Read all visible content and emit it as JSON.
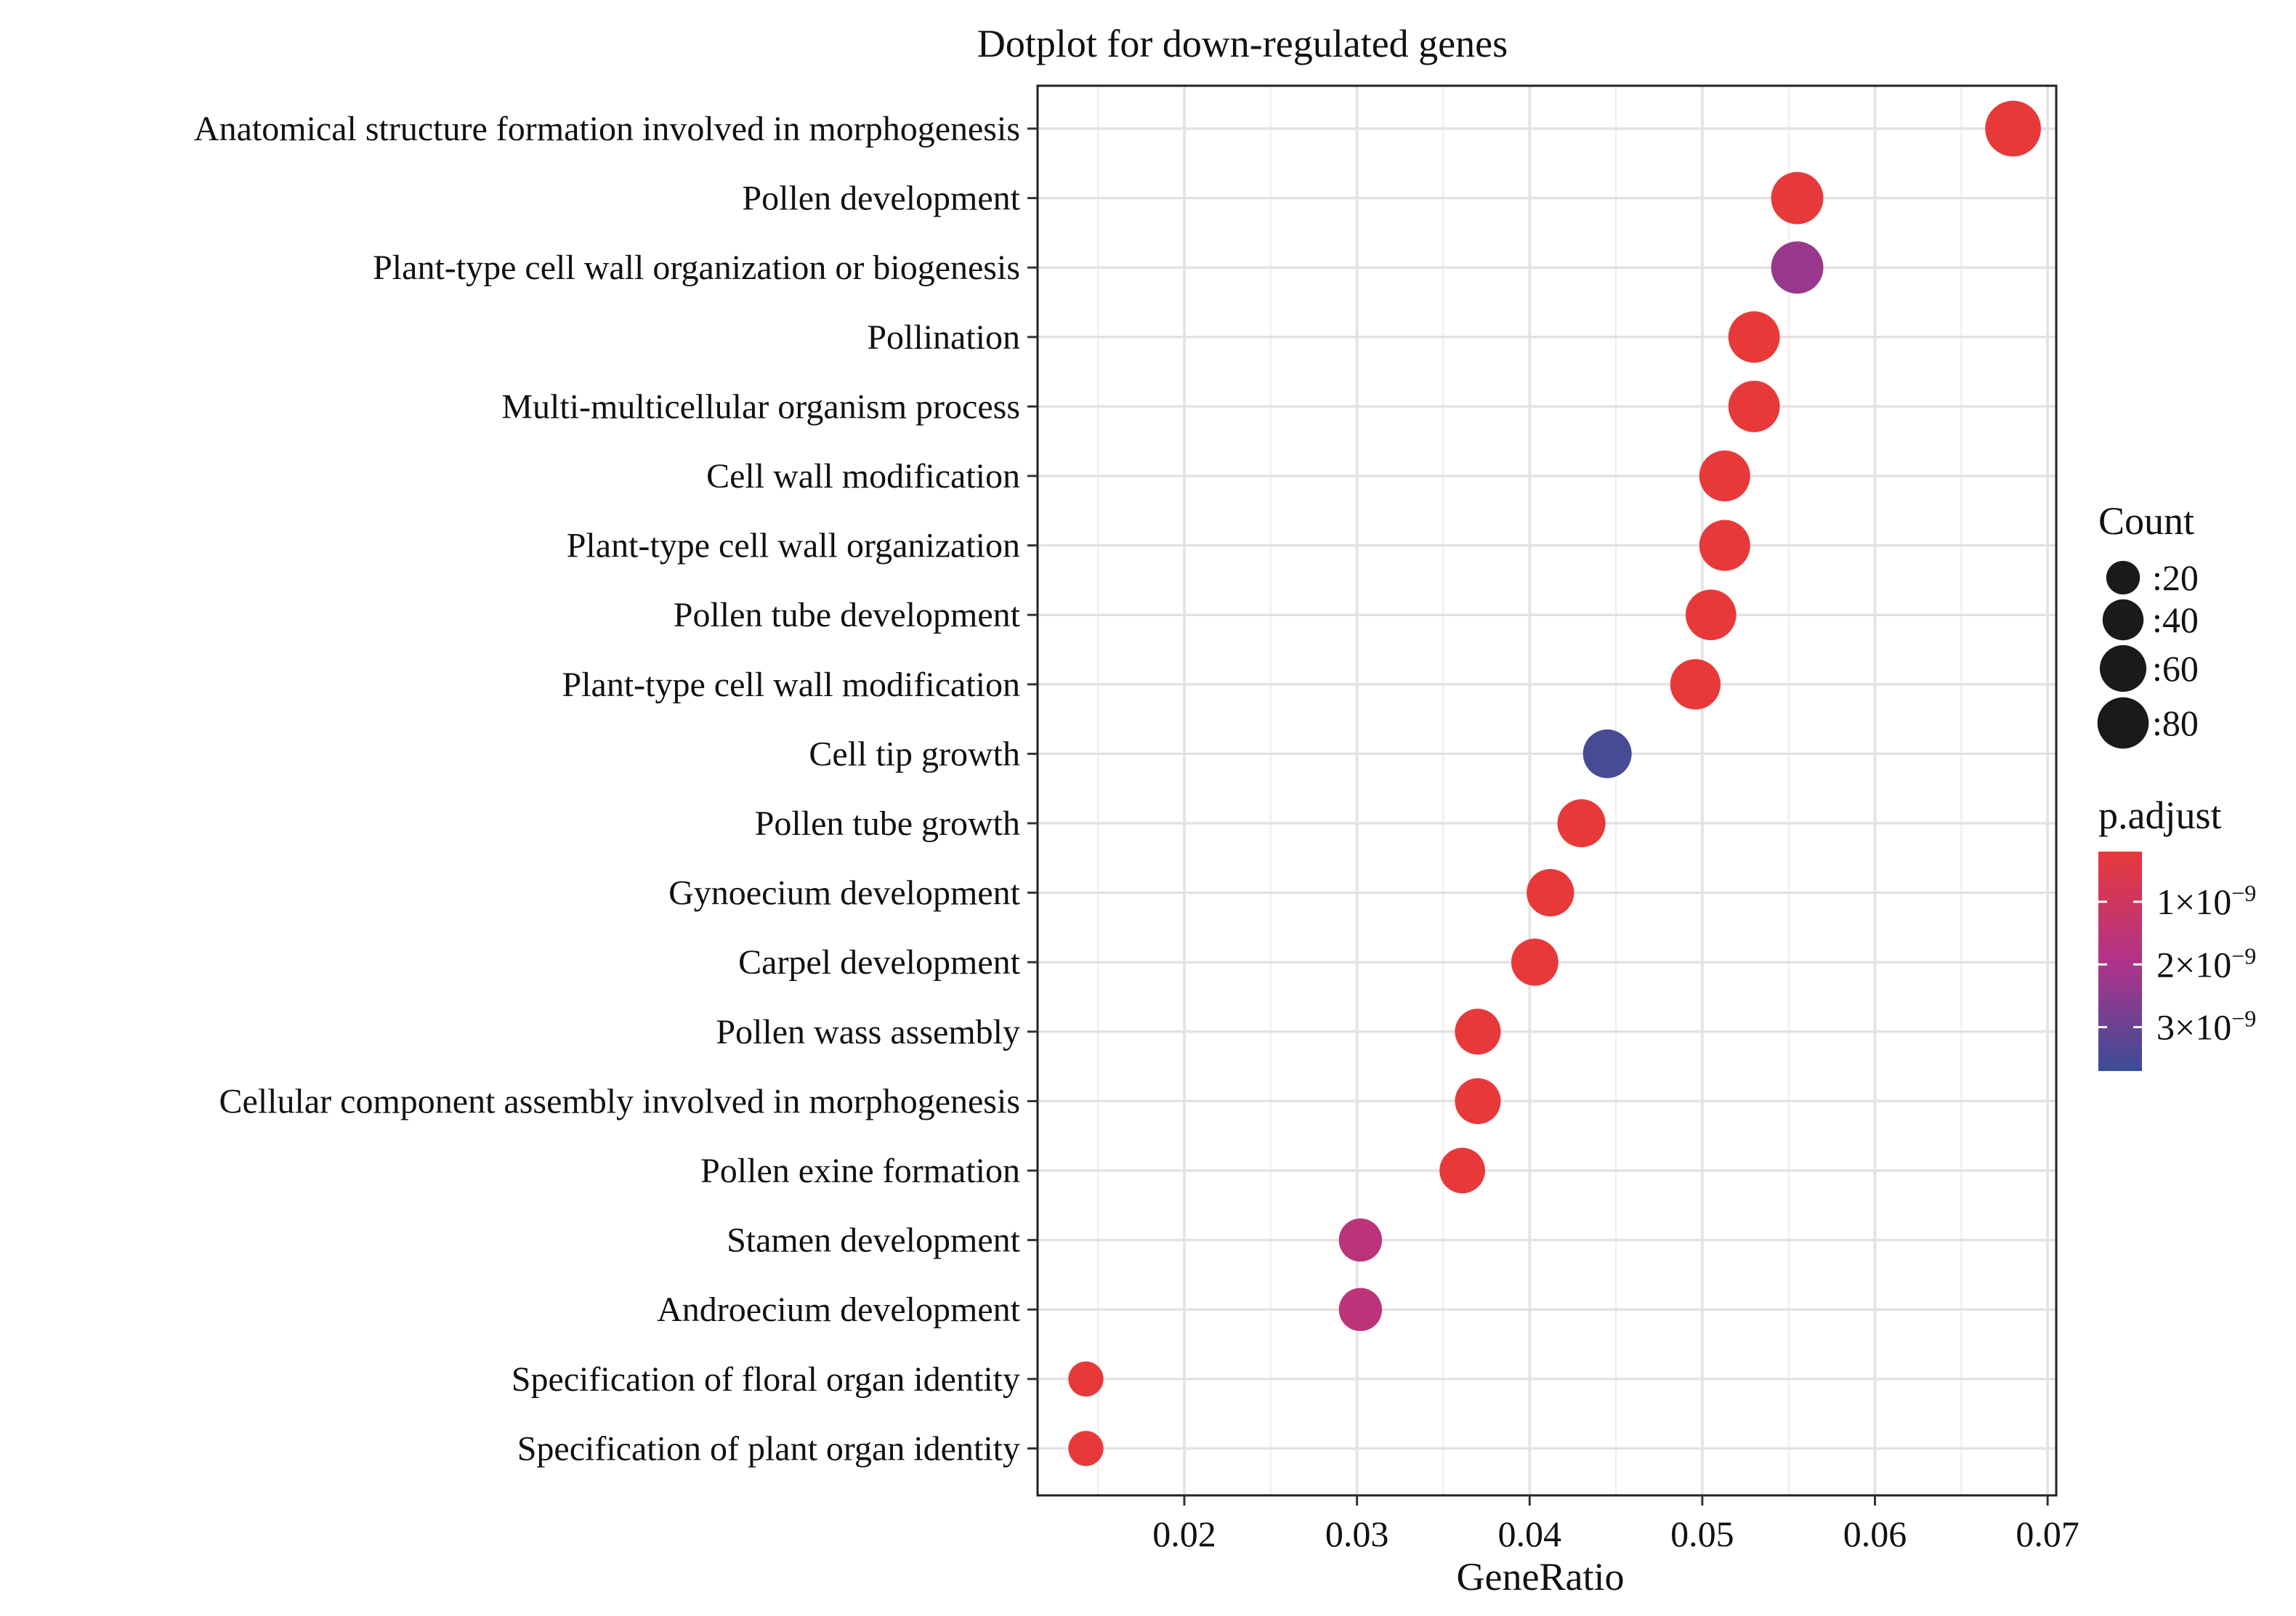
{
  "chart_data": {
    "type": "scatter",
    "title": "Dotplot for down-regulated genes",
    "xlabel": "GeneRatio",
    "ylabel": "",
    "xlim": [
      0.0115,
      0.0705
    ],
    "xticks": [
      0.02,
      0.03,
      0.04,
      0.05,
      0.06,
      0.07
    ],
    "xtick_labels": [
      "0.02",
      "0.03",
      "0.04",
      "0.05",
      "0.06",
      "0.07"
    ],
    "grid": true,
    "legend_position": "right",
    "categories": [
      "Anatomical structure formation involved in morphogenesis",
      "Pollen development",
      "Plant-type cell wall organization or biogenesis",
      "Pollination",
      "Multi-multicellular organism process",
      "Cell wall modification",
      "Plant-type cell wall organization",
      "Pollen tube development",
      "Plant-type cell wall modification",
      "Cell tip growth",
      "Pollen tube growth",
      "Gynoecium development",
      "Carpel development",
      "Pollen wass assembly",
      "Cellular component assembly involved in morphogenesis",
      "Pollen exine formation",
      "Stamen development",
      "Androecium development",
      "Specification of floral organ identity",
      "Specification of plant organ identity"
    ],
    "gene_ratio": [
      0.068,
      0.0555,
      0.0555,
      0.053,
      0.053,
      0.0513,
      0.0513,
      0.0505,
      0.0496,
      0.0445,
      0.043,
      0.0412,
      0.0403,
      0.037,
      0.037,
      0.0361,
      0.0302,
      0.0302,
      0.0143,
      0.0143
    ],
    "count": [
      80,
      66,
      66,
      63,
      63,
      61,
      61,
      60,
      59,
      53,
      51,
      49,
      48,
      44,
      44,
      43,
      36,
      36,
      17,
      17
    ],
    "p_adjust": [
      2e-10,
      2e-10,
      2.3e-09,
      2e-10,
      2e-10,
      2e-10,
      2e-10,
      2e-10,
      2e-10,
      3.5e-09,
      2e-10,
      2e-10,
      2e-10,
      2e-10,
      2e-10,
      2e-10,
      1.6e-09,
      1.6e-09,
      2e-10,
      2e-10
    ],
    "size_legend": {
      "title": "Count",
      "values": [
        20,
        40,
        60,
        80
      ],
      "labels": [
        ":20",
        ":40",
        ":60",
        ":80"
      ]
    },
    "color_legend": {
      "title": "p.adjust",
      "range": [
        2e-10,
        3.7e-09
      ],
      "ticks": [
        1e-09,
        2e-09,
        3e-09
      ],
      "tick_labels_mantissa": [
        "1×10",
        "2×10",
        "3×10"
      ],
      "tick_labels_exponent": [
        "−9",
        "−9",
        "−9"
      ],
      "low_color": "#e8393a",
      "mid_color": "#b0338a",
      "high_color": "#3a4d96"
    }
  }
}
